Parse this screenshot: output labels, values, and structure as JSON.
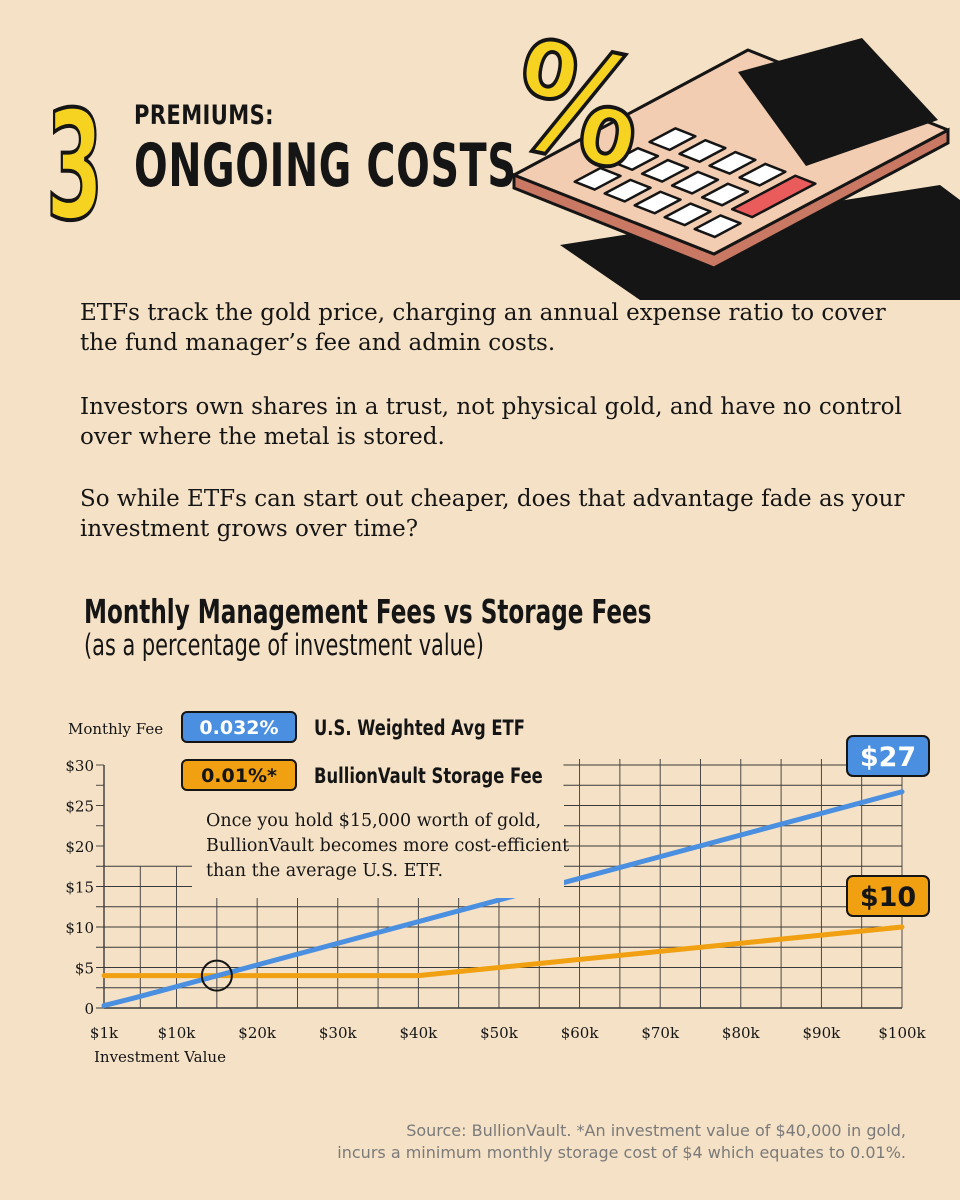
{
  "header": {
    "number": "3",
    "kicker": "PREMIUMS:",
    "title": "ONGOING COSTS",
    "calculator_symbol": "%"
  },
  "body": {
    "paragraphs": [
      "ETFs track the gold price, charging an annual expense ratio to cover the fund manager’s fee and admin costs.",
      "Investors own shares in a trust, not physical gold, and have no control over where the metal is stored.",
      "So while ETFs can start out cheaper, does that advantage fade as your investment grows over time?"
    ]
  },
  "colors": {
    "background": "#f5e1c6",
    "etf": "#4a8fe0",
    "bullionvault": "#f0a010",
    "grid": "#3a3a3a",
    "accent_yellow": "#f6d321",
    "calculator_body": "#f3cdb2",
    "calculator_red": "#ea5b5b"
  },
  "chart_data": {
    "type": "line",
    "title": "Monthly Management Fees vs Storage Fees",
    "subtitle": "(as a percentage of investment value)",
    "ylabel": "Monthly Fee",
    "xlabel": "Investment Value",
    "xlim": [
      1,
      100
    ],
    "ylim": [
      0,
      30
    ],
    "x_ticks": [
      1,
      10,
      20,
      30,
      40,
      50,
      60,
      70,
      80,
      90,
      100
    ],
    "x_tick_labels": [
      "$1k",
      "$10k",
      "$20k",
      "$30k",
      "$40k",
      "$50k",
      "$60k",
      "$70k",
      "$80k",
      "$90k",
      "$100k"
    ],
    "y_ticks": [
      0,
      5,
      10,
      15,
      20,
      25,
      30
    ],
    "y_tick_labels": [
      "0",
      "$5",
      "$10",
      "$15",
      "$20",
      "$25",
      "$30"
    ],
    "grid": true,
    "series": [
      {
        "name": "U.S. Weighted Avg ETF",
        "badge": "0.032%",
        "end_label": "$27",
        "x": [
          1,
          5,
          100
        ],
        "y": [
          0.3,
          1.3,
          26.7
        ]
      },
      {
        "name": "BullionVault Storage Fee",
        "badge": "0.01%*",
        "end_label": "$10",
        "x": [
          1,
          40,
          100
        ],
        "y": [
          4,
          4,
          10
        ]
      }
    ],
    "annotations": [
      {
        "text": "Once you hold $15,000 worth of gold, BullionVault becomes more cost-efficient than the average U.S. ETF.",
        "lines": [
          "Once you hold $15,000 worth of gold,",
          "BullionVault becomes more cost-efficient",
          "than the average U.S. ETF."
        ],
        "x": 15,
        "y": 4
      }
    ]
  },
  "footer": {
    "source_lines": [
      "Source: BullionVault. *An investment value of $40,000 in gold,",
      "incurs a minimum monthly storage cost of $4 which equates to 0.01%."
    ]
  }
}
